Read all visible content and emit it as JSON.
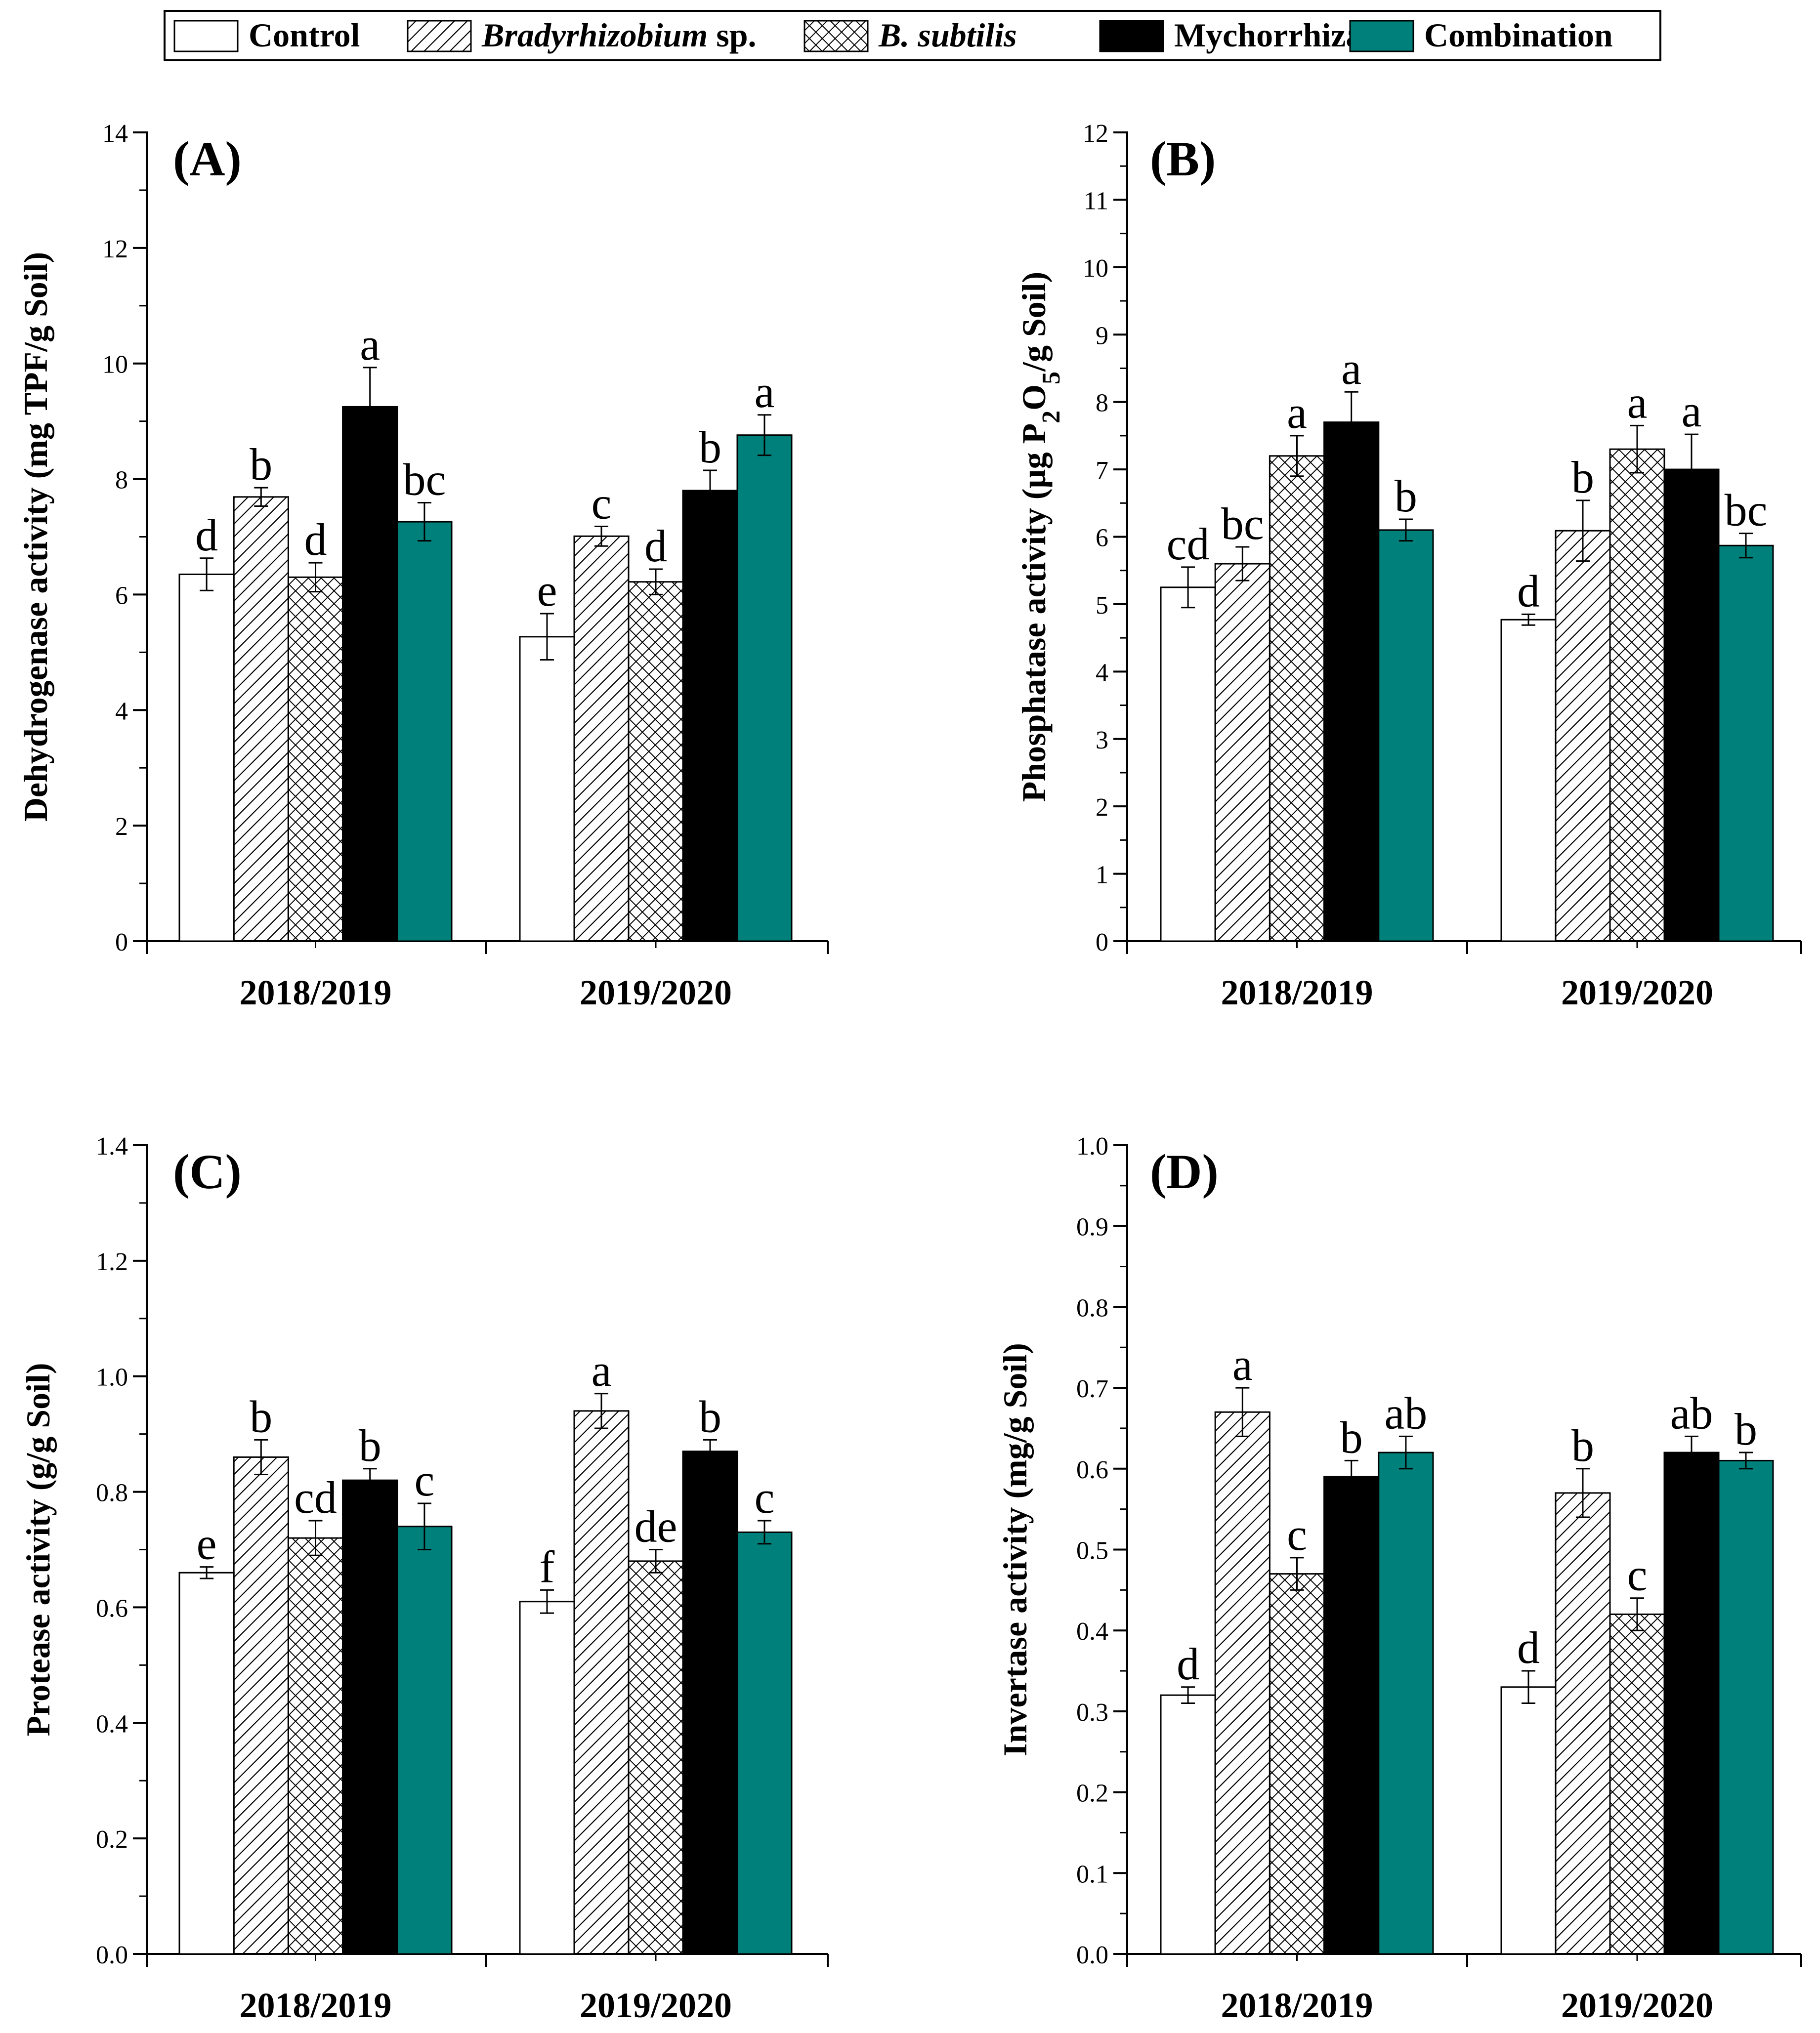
{
  "legend": [
    {
      "name": "Control",
      "style": "open",
      "italic_part": "",
      "plain_part": "Control"
    },
    {
      "name": "Bradyrhizobium sp.",
      "style": "diag",
      "italic_part": "Bradyrhizobium",
      "plain_part": " sp."
    },
    {
      "name": "B. subtilis",
      "style": "cross",
      "italic_part": "B. subtilis",
      "plain_part": ""
    },
    {
      "name": "Mychorrhiza",
      "style": "black",
      "italic_part": "",
      "plain_part": "Mychorrhiza"
    },
    {
      "name": "Combination",
      "style": "teal",
      "italic_part": "",
      "plain_part": "Combination"
    }
  ],
  "colors": {
    "teal": "#00807a",
    "black": "#000000",
    "white": "#ffffff",
    "axis": "#000000"
  },
  "chart_data": [
    {
      "panel": "(A)",
      "type": "bar",
      "ylabel": "Dehydrogenase activity (mg TPF/g Soil)",
      "ylim": [
        0,
        14
      ],
      "yticks": [
        0,
        2,
        4,
        6,
        8,
        10,
        12,
        14
      ],
      "tick_decimals": 0,
      "categories": [
        "2018/2019",
        "2019/2020"
      ],
      "series": [
        {
          "name": "Control",
          "values": [
            6.35,
            5.27
          ],
          "errors": [
            0.28,
            0.4
          ],
          "letters": [
            "d",
            "e"
          ]
        },
        {
          "name": "Bradyrhizobium sp.",
          "values": [
            7.69,
            7.01
          ],
          "errors": [
            0.16,
            0.17
          ],
          "letters": [
            "b",
            "c"
          ]
        },
        {
          "name": "B. subtilis",
          "values": [
            6.3,
            6.22
          ],
          "errors": [
            0.25,
            0.22
          ],
          "letters": [
            "d",
            "d"
          ]
        },
        {
          "name": "Mychorrhiza",
          "values": [
            9.25,
            7.8
          ],
          "errors": [
            0.68,
            0.35
          ],
          "letters": [
            "a",
            "b"
          ]
        },
        {
          "name": "Combination",
          "values": [
            7.26,
            8.76
          ],
          "errors": [
            0.33,
            0.35
          ],
          "letters": [
            "bc",
            "a"
          ]
        }
      ]
    },
    {
      "panel": "(B)",
      "type": "bar",
      "ylabel": "Phosphatase activity (µg P2O5/g Soil)",
      "ylabel_parts": [
        "Phosphatase activity (µg P",
        "2",
        "O",
        "5",
        "/g Soil)"
      ],
      "ylim": [
        0,
        12
      ],
      "yticks": [
        0,
        1,
        2,
        3,
        4,
        5,
        6,
        7,
        8,
        9,
        10,
        11,
        12
      ],
      "tick_decimals": 0,
      "categories": [
        "2018/2019",
        "2019/2020"
      ],
      "series": [
        {
          "name": "Control",
          "values": [
            5.25,
            4.77
          ],
          "errors": [
            0.3,
            0.08
          ],
          "letters": [
            "cd",
            "d"
          ]
        },
        {
          "name": "Bradyrhizobium sp.",
          "values": [
            5.6,
            6.09
          ],
          "errors": [
            0.25,
            0.45
          ],
          "letters": [
            "bc",
            "b"
          ]
        },
        {
          "name": "B. subtilis",
          "values": [
            7.2,
            7.3
          ],
          "errors": [
            0.3,
            0.35
          ],
          "letters": [
            "a",
            "a"
          ]
        },
        {
          "name": "Mychorrhiza",
          "values": [
            7.7,
            7.0
          ],
          "errors": [
            0.45,
            0.52
          ],
          "letters": [
            "a",
            "a"
          ]
        },
        {
          "name": "Combination",
          "values": [
            6.1,
            5.87
          ],
          "errors": [
            0.16,
            0.18
          ],
          "letters": [
            "b",
            "bc"
          ]
        }
      ]
    },
    {
      "panel": "(C)",
      "type": "bar",
      "ylabel": "Protease activity (g/g Soil)",
      "ylim": [
        0,
        1.4
      ],
      "yticks": [
        0.0,
        0.2,
        0.4,
        0.6,
        0.8,
        1.0,
        1.2,
        1.4
      ],
      "tick_decimals": 1,
      "categories": [
        "2018/2019",
        "2019/2020"
      ],
      "series": [
        {
          "name": "Control",
          "values": [
            0.66,
            0.61
          ],
          "errors": [
            0.01,
            0.02
          ],
          "letters": [
            "e",
            "f"
          ]
        },
        {
          "name": "Bradyrhizobium sp.",
          "values": [
            0.86,
            0.94
          ],
          "errors": [
            0.03,
            0.03
          ],
          "letters": [
            "b",
            "a"
          ]
        },
        {
          "name": "B. subtilis",
          "values": [
            0.72,
            0.68
          ],
          "errors": [
            0.03,
            0.02
          ],
          "letters": [
            "cd",
            "de"
          ]
        },
        {
          "name": "Mychorrhiza",
          "values": [
            0.82,
            0.87
          ],
          "errors": [
            0.02,
            0.02
          ],
          "letters": [
            "b",
            "b"
          ]
        },
        {
          "name": "Combination",
          "values": [
            0.74,
            0.73
          ],
          "errors": [
            0.04,
            0.02
          ],
          "letters": [
            "c",
            "c"
          ]
        }
      ]
    },
    {
      "panel": "(D)",
      "type": "bar",
      "ylabel": "Invertase activity (mg/g Soil)",
      "ylim": [
        0,
        1.0
      ],
      "yticks": [
        0.0,
        0.1,
        0.2,
        0.3,
        0.4,
        0.5,
        0.6,
        0.7,
        0.8,
        0.9,
        1.0
      ],
      "tick_decimals": 1,
      "categories": [
        "2018/2019",
        "2019/2020"
      ],
      "series": [
        {
          "name": "Control",
          "values": [
            0.32,
            0.33
          ],
          "errors": [
            0.01,
            0.02
          ],
          "letters": [
            "d",
            "d"
          ]
        },
        {
          "name": "Bradyrhizobium sp.",
          "values": [
            0.67,
            0.57
          ],
          "errors": [
            0.03,
            0.03
          ],
          "letters": [
            "a",
            "b"
          ]
        },
        {
          "name": "B. subtilis",
          "values": [
            0.47,
            0.42
          ],
          "errors": [
            0.02,
            0.02
          ],
          "letters": [
            "c",
            "c"
          ]
        },
        {
          "name": "Mychorrhiza",
          "values": [
            0.59,
            0.62
          ],
          "errors": [
            0.02,
            0.02
          ],
          "letters": [
            "b",
            "ab"
          ]
        },
        {
          "name": "Combination",
          "values": [
            0.62,
            0.61
          ],
          "errors": [
            0.02,
            0.01
          ],
          "letters": [
            "ab",
            "b"
          ]
        }
      ]
    }
  ]
}
